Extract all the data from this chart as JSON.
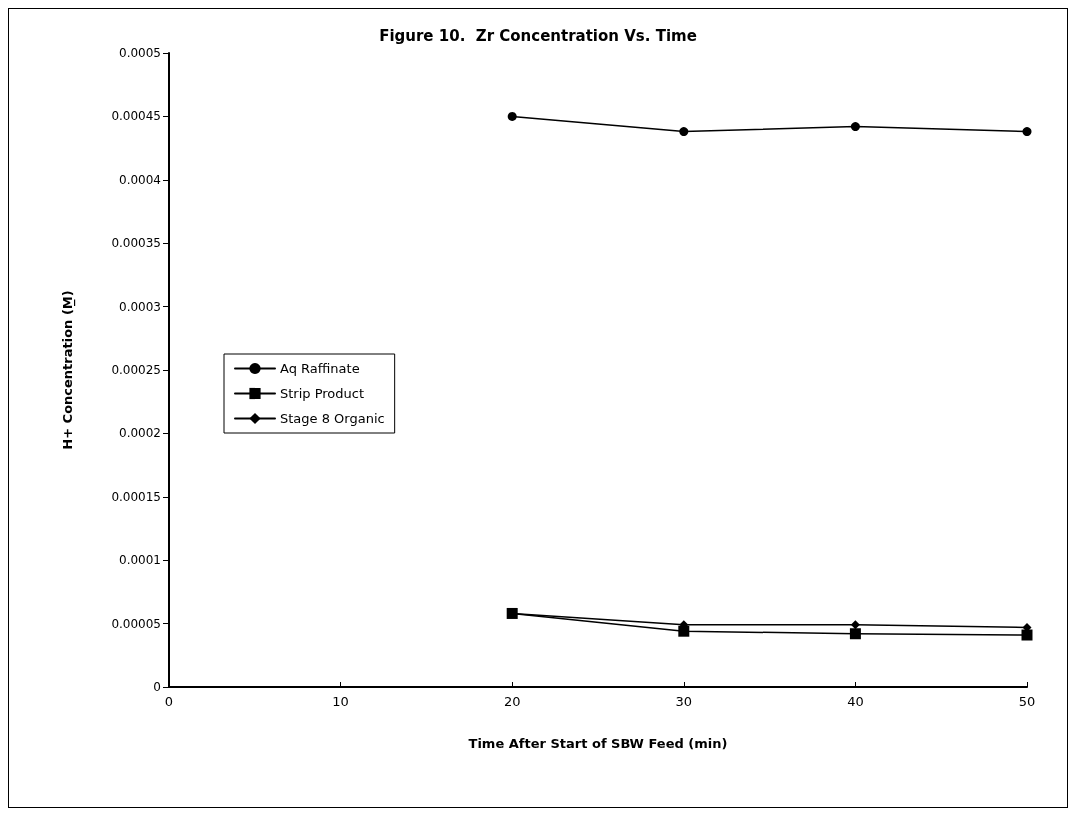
{
  "chart_data": {
    "type": "line",
    "title": "Figure 10.  Zr Concentration Vs. Time",
    "xlabel": "Time After Start of SBW Feed (min)",
    "ylabel": "H+ Concentration (M̲)",
    "x": [
      20,
      30,
      40,
      50
    ],
    "series": [
      {
        "name": "Aq Raffinate",
        "color": "#000000",
        "marker": "circle",
        "values": [
          0.00045,
          0.000438,
          0.000442,
          0.000438
        ]
      },
      {
        "name": "Strip Product",
        "color": "#000000",
        "marker": "square",
        "values": [
          5.8e-05,
          4.4e-05,
          4.2e-05,
          4.1e-05
        ]
      },
      {
        "name": "Stage 8 Organic",
        "color": "#000000",
        "marker": "diamond",
        "values": [
          5.8e-05,
          4.9e-05,
          4.9e-05,
          4.7e-05
        ]
      }
    ],
    "xlim": [
      0,
      50
    ],
    "xticks": [
      0,
      10,
      20,
      30,
      40,
      50
    ],
    "ylim": [
      0,
      0.0005
    ],
    "yticks": [
      0,
      {
        "value": 5e-05,
        "label": "0.00005"
      },
      0.0001,
      0.00015,
      0.0002,
      0.00025,
      0.0003,
      0.00035,
      0.0004,
      0.00045,
      0.0005
    ],
    "grid": false,
    "legend": "left",
    "line_style": "solid"
  }
}
